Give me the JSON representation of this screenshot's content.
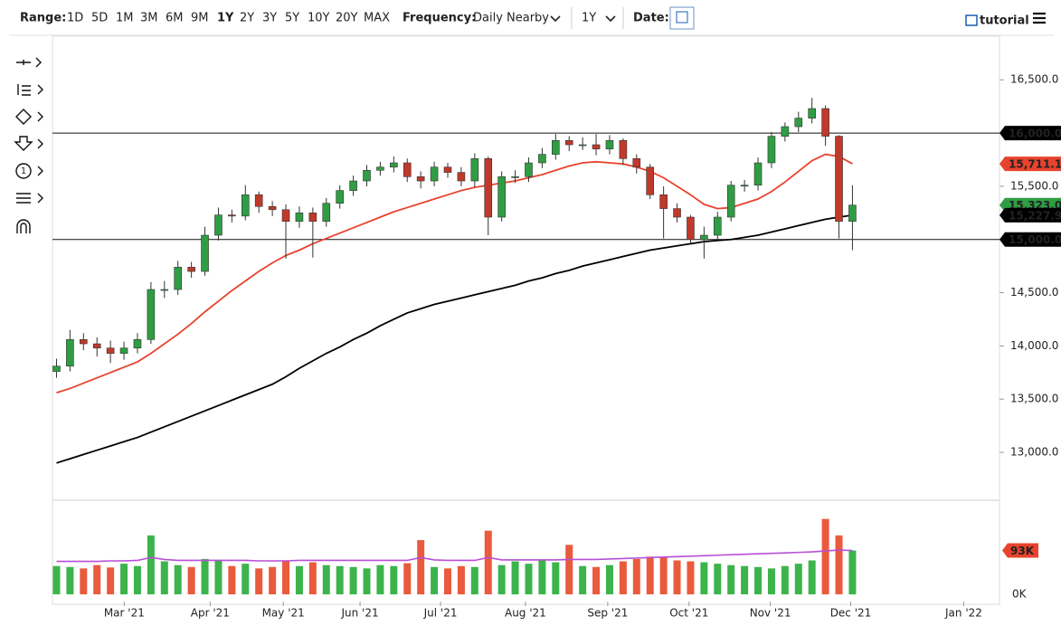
{
  "toolbar": {
    "range_label": "Range:",
    "ranges": [
      "1D",
      "5D",
      "1M",
      "3M",
      "6M",
      "9M",
      "1Y",
      "2Y",
      "3Y",
      "5Y",
      "10Y",
      "20Y",
      "MAX"
    ],
    "active_range": 6,
    "frequency_label": "Frequency:",
    "frequency": "Daily Nearby",
    "period": "1Y",
    "date_label": "Date:",
    "tutorial": "tutorial"
  },
  "chart_data": {
    "type": "candlestick",
    "categories": [
      null,
      null,
      null,
      null,
      null,
      null,
      null,
      null,
      null,
      null,
      null,
      null,
      null,
      null,
      null,
      null,
      null,
      null,
      null,
      null,
      null,
      null,
      null,
      null,
      null,
      null,
      null,
      null,
      null,
      null,
      null,
      null,
      null,
      null,
      null,
      null,
      null,
      null,
      null,
      null,
      null,
      null,
      null,
      null,
      null,
      null,
      null,
      null,
      null,
      null,
      null,
      null,
      null,
      null,
      null,
      null,
      null,
      null,
      null,
      null
    ],
    "open": [
      13760,
      13810,
      14060,
      14020,
      13980,
      13930,
      13980,
      14060,
      14530,
      14530,
      14740,
      14700,
      15040,
      15230,
      15220,
      15420,
      15310,
      15280,
      15170,
      15250,
      15170,
      15340,
      15460,
      15550,
      15650,
      15680,
      15720,
      15590,
      15550,
      15680,
      15630,
      15550,
      15760,
      15210,
      15590,
      15590,
      15720,
      15800,
      15930,
      15890,
      15890,
      15850,
      15930,
      15760,
      15680,
      15420,
      15290,
      15210,
      15000,
      15040,
      15210,
      15510,
      15510,
      15720,
      15970,
      16060,
      16140,
      16230,
      15970,
      15170
    ],
    "high": [
      13880,
      14150,
      14120,
      14080,
      14050,
      14040,
      14120,
      14600,
      14610,
      14800,
      14790,
      15120,
      15300,
      15280,
      15510,
      15450,
      15360,
      15330,
      15310,
      15300,
      15390,
      15510,
      15600,
      15700,
      15730,
      15780,
      15760,
      15640,
      15730,
      15720,
      15680,
      15810,
      15780,
      15640,
      15650,
      15770,
      15860,
      15990,
      15970,
      15960,
      15990,
      15980,
      15950,
      15800,
      15710,
      15500,
      15340,
      15230,
      15120,
      15260,
      15550,
      15560,
      15770,
      16010,
      16100,
      16200,
      16330,
      16260,
      15980,
      15510
    ],
    "low": [
      13700,
      13760,
      13960,
      13900,
      13840,
      13870,
      13930,
      14020,
      14450,
      14480,
      14640,
      14660,
      14990,
      15160,
      15180,
      15250,
      15220,
      14820,
      15110,
      14830,
      15120,
      15290,
      15410,
      15500,
      15600,
      15630,
      15540,
      15480,
      15500,
      15580,
      15500,
      15490,
      15040,
      15170,
      15530,
      15540,
      15670,
      15750,
      15830,
      15840,
      15790,
      15800,
      15700,
      15620,
      15380,
      15010,
      15160,
      14960,
      14820,
      14990,
      15170,
      15450,
      15460,
      15670,
      15920,
      16010,
      16090,
      15880,
      15010,
      14900
    ],
    "close": [
      13810,
      14060,
      14020,
      13980,
      13930,
      13980,
      14060,
      14530,
      14530,
      14740,
      14700,
      15040,
      15230,
      15220,
      15420,
      15310,
      15280,
      15170,
      15250,
      15170,
      15340,
      15460,
      15550,
      15650,
      15680,
      15720,
      15590,
      15550,
      15680,
      15630,
      15550,
      15760,
      15210,
      15590,
      15590,
      15720,
      15800,
      15930,
      15890,
      15890,
      15850,
      15930,
      15760,
      15680,
      15420,
      15290,
      15210,
      15000,
      15040,
      15210,
      15510,
      15510,
      15720,
      15970,
      16060,
      16140,
      16230,
      15970,
      15170,
      15323
    ],
    "up_color": "#2f9d43",
    "down_color": "#c0392b",
    "lines": [
      {
        "color": "#e8432e",
        "values": [
          13560,
          13600,
          13650,
          13700,
          13750,
          13800,
          13850,
          13930,
          14020,
          14110,
          14210,
          14320,
          14420,
          14520,
          14610,
          14700,
          14780,
          14850,
          14900,
          14960,
          15010,
          15060,
          15110,
          15160,
          15210,
          15260,
          15300,
          15340,
          15380,
          15420,
          15460,
          15490,
          15510,
          15530,
          15550,
          15580,
          15610,
          15650,
          15690,
          15720,
          15730,
          15720,
          15710,
          15680,
          15640,
          15580,
          15500,
          15420,
          15330,
          15290,
          15300,
          15340,
          15380,
          15450,
          15540,
          15640,
          15740,
          15800,
          15780,
          15711
        ]
      },
      {
        "color": "#000000",
        "values": [
          12900,
          12940,
          12980,
          13020,
          13060,
          13100,
          13140,
          13190,
          13240,
          13290,
          13340,
          13390,
          13440,
          13490,
          13540,
          13590,
          13640,
          13710,
          13790,
          13860,
          13930,
          13990,
          14060,
          14120,
          14190,
          14250,
          14310,
          14350,
          14390,
          14420,
          14450,
          14480,
          14510,
          14540,
          14570,
          14610,
          14640,
          14680,
          14710,
          14750,
          14780,
          14810,
          14840,
          14870,
          14900,
          14920,
          14940,
          14960,
          14980,
          14990,
          15000,
          15020,
          15040,
          15070,
          15100,
          15130,
          15160,
          15190,
          15210,
          15228
        ]
      }
    ],
    "ylim": [
      12550,
      16910
    ],
    "yticks": [
      {
        "value": 13000,
        "label": "13,000.0"
      },
      {
        "value": 13500,
        "label": "13,500.0"
      },
      {
        "value": 14000,
        "label": "14,000.0"
      },
      {
        "value": 14500,
        "label": "14,500.0"
      },
      {
        "value": 15000,
        "label": "15,000.0"
      },
      {
        "value": 15500,
        "label": "15,500.0"
      },
      {
        "value": 16000,
        "label": "16,000.0"
      },
      {
        "value": 16500,
        "label": "16,500.0"
      }
    ],
    "hlines": [
      16000,
      15000
    ],
    "price_labels": [
      {
        "value": 16000,
        "label": "16,000.0",
        "color": "#000000"
      },
      {
        "value": 15711.1,
        "label": "15,711.1",
        "color": "#e8432e"
      },
      {
        "value": 15323,
        "label": "15,323.0",
        "color": "#2f9d43"
      },
      {
        "value": 15227.9,
        "label": "15,227.9",
        "color": "#000000"
      },
      {
        "value": 15000,
        "label": "15,000.0",
        "color": "#000000"
      }
    ],
    "xlim": [
      -0.3,
      69.9
    ],
    "xticks": [
      {
        "value": 5.02,
        "label": "Mar '21"
      },
      {
        "value": 11.39,
        "label": "Apr '21"
      },
      {
        "value": 16.81,
        "label": "May '21"
      },
      {
        "value": 22.5,
        "label": "Jun '21"
      },
      {
        "value": 28.47,
        "label": "Jul '21"
      },
      {
        "value": 34.76,
        "label": "Aug '21"
      },
      {
        "value": 40.86,
        "label": "Sep '21"
      },
      {
        "value": 46.89,
        "label": "Oct '21"
      },
      {
        "value": 52.91,
        "label": "Nov '21"
      },
      {
        "value": 58.87,
        "label": "Dec '21"
      },
      {
        "value": 67.25,
        "label": "Jan '22"
      }
    ],
    "volume": {
      "values": [
        60,
        58,
        55,
        62,
        57,
        65,
        60,
        125,
        70,
        62,
        58,
        75,
        72,
        60,
        65,
        55,
        58,
        72,
        60,
        68,
        62,
        60,
        58,
        55,
        62,
        60,
        66,
        115,
        58,
        55,
        60,
        58,
        135,
        62,
        70,
        65,
        72,
        68,
        105,
        60,
        58,
        62,
        70,
        75,
        80,
        78,
        72,
        70,
        68,
        65,
        62,
        60,
        58,
        55,
        60,
        65,
        72,
        160,
        125,
        93
      ],
      "up_color": "#3cb44b",
      "down_color": "#ea5a3c",
      "avg": {
        "color": "#b84fd6",
        "values": [
          70,
          70,
          70,
          70,
          71,
          71,
          72,
          78,
          74,
          72,
          72,
          72,
          72,
          72,
          72,
          71,
          71,
          71,
          72,
          72,
          72,
          72,
          72,
          72,
          72,
          72,
          72,
          78,
          73,
          72,
          72,
          72,
          78,
          73,
          73,
          73,
          73,
          73,
          74,
          74,
          74,
          75,
          76,
          77,
          78,
          79,
          80,
          81,
          82,
          83,
          84,
          85,
          86,
          87,
          88,
          89,
          90,
          92,
          94,
          93
        ]
      },
      "ylim": [
        0,
        190
      ],
      "yticks": [
        {
          "value": 0,
          "label": "0K"
        }
      ],
      "last_label": {
        "value": 93,
        "label": "93K",
        "color": "#e8432e"
      }
    }
  }
}
